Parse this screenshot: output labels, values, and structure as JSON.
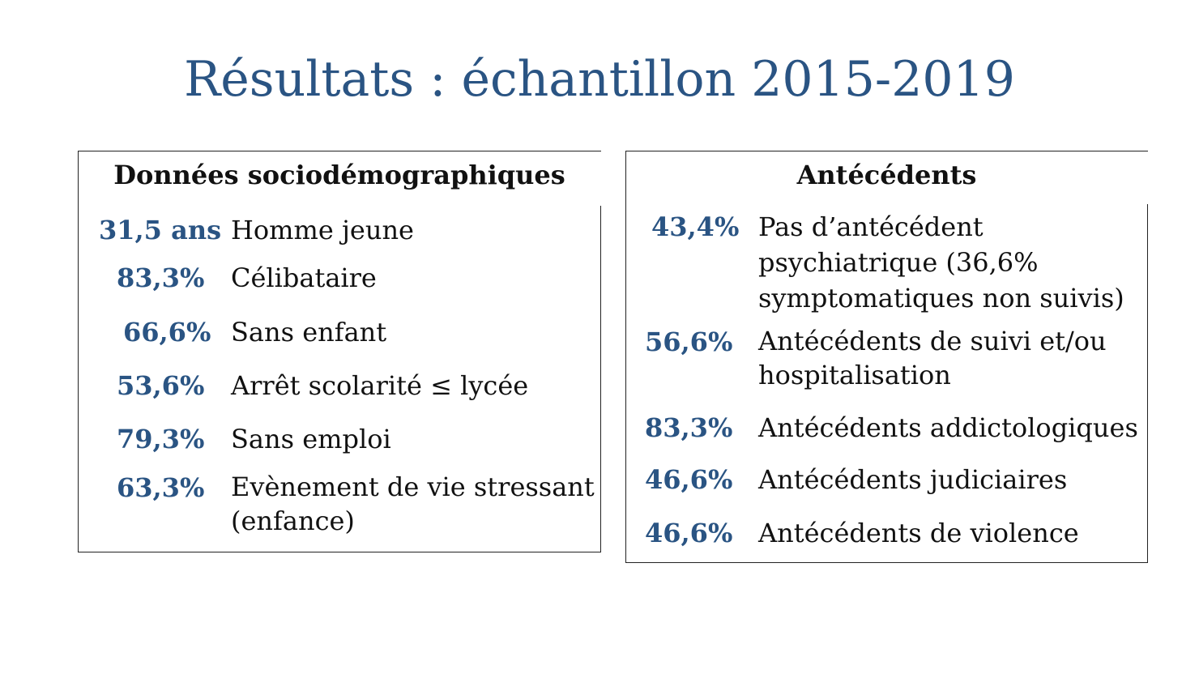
{
  "title": "Résultats : échantillon 2015-2019",
  "left_panel": {
    "header": "Données sociodémographiques",
    "rows": [
      {
        "value": "31,5 ans",
        "label": "Homme jeune"
      },
      {
        "value": "83,3%",
        "label": "Célibataire"
      },
      {
        "value": "66,6%",
        "label": "Sans enfant"
      },
      {
        "value": "53,6%",
        "label": "Arrêt scolarité ≤ lycée"
      },
      {
        "value": "79,3%",
        "label": "Sans emploi"
      },
      {
        "value": "63,3%",
        "label": "Evènement de vie stressant (enfance)"
      }
    ]
  },
  "right_panel": {
    "header": "Antécédents",
    "rows": [
      {
        "value": "43,4%",
        "label": "Pas d’antécédent psychiatrique (36,6% symptomatiques non suivis)"
      },
      {
        "value": "56,6%",
        "label": "Antécédents de suivi et/ou hospitalisation"
      },
      {
        "value": "83,3%",
        "label": "Antécédents addictologiques"
      },
      {
        "value": "46,6%",
        "label": "Antécédents judiciaires"
      },
      {
        "value": "46,6%",
        "label": "Antécédents de violence"
      }
    ]
  },
  "colors": {
    "accent": "#2a5483",
    "text": "#111111",
    "border": "#222222"
  }
}
